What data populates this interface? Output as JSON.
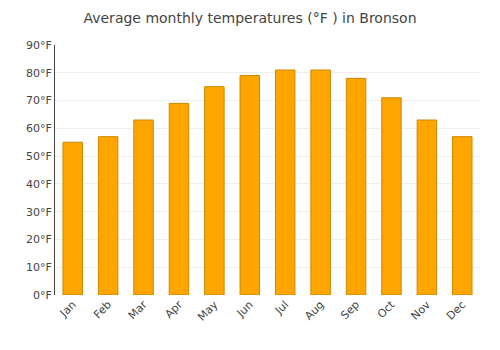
{
  "chart_data": {
    "type": "bar",
    "title": "Average monthly temperatures (°F ) in Bronson",
    "categories": [
      "Jan",
      "Feb",
      "Mar",
      "Apr",
      "May",
      "Jun",
      "Jul",
      "Aug",
      "Sep",
      "Oct",
      "Nov",
      "Dec"
    ],
    "values": [
      55,
      57,
      63,
      69,
      75,
      79,
      81,
      81,
      78,
      71,
      63,
      57
    ],
    "color": "#FFA500",
    "ylim": [
      0,
      90
    ],
    "yticks": [
      {
        "value": 0,
        "label": "0°F"
      },
      {
        "value": 10,
        "label": "10°F"
      },
      {
        "value": 20,
        "label": "20°F"
      },
      {
        "value": 30,
        "label": "30°F"
      },
      {
        "value": 40,
        "label": "40°F"
      },
      {
        "value": 50,
        "label": "50°F"
      },
      {
        "value": 60,
        "label": "60°F"
      },
      {
        "value": 70,
        "label": "70°F"
      },
      {
        "value": 80,
        "label": "80°F"
      },
      {
        "value": 90,
        "label": "90°F"
      }
    ],
    "grid": true
  }
}
